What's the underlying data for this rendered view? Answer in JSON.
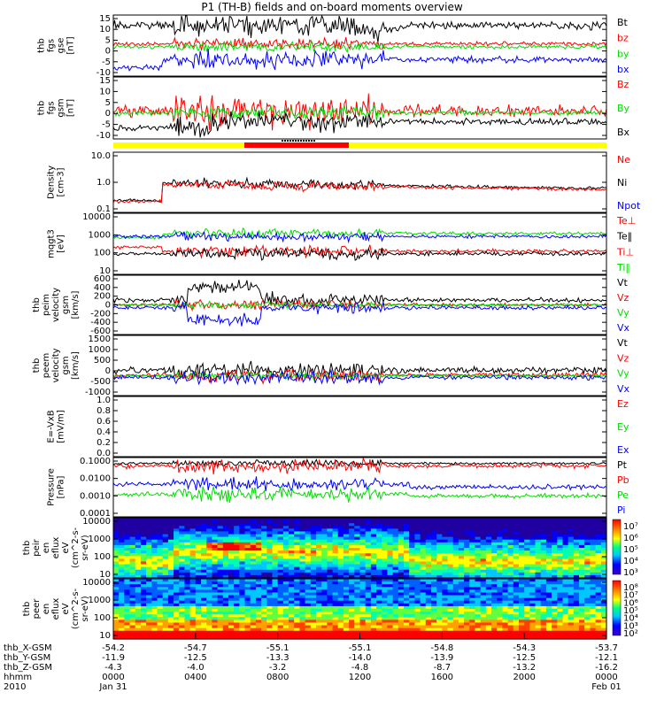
{
  "title": "P1 (TH-B) fields and on-board moments overview",
  "colors": {
    "black": "#000000",
    "red": "#ff0000",
    "green": "#00dd00",
    "blue": "#0000ff",
    "yellow": "#ffff00"
  },
  "chart_data": [
    {
      "type": "line",
      "ylabel": [
        "thb",
        "fgs",
        "gse",
        "[nT]"
      ],
      "ylim": [
        -15,
        15
      ],
      "yticks": [
        "15",
        "10",
        "5",
        "0",
        "-5",
        "-10"
      ],
      "legend": [
        "Bt",
        "bz",
        "by",
        "bx"
      ],
      "legend_colors": [
        "#000000",
        "#ff0000",
        "#00dd00",
        "#0000ff"
      ]
    },
    {
      "type": "line",
      "ylabel": [
        "thb",
        "fgs",
        "gsm",
        "[nT]"
      ],
      "ylim": [
        -15,
        15
      ],
      "yticks": [
        "15",
        "10",
        "5",
        "0",
        "-5",
        "-10"
      ],
      "legend": [
        "Bz",
        "By",
        "Bx"
      ],
      "legend_colors": [
        "#ff0000",
        "#00dd00",
        "#000000"
      ]
    },
    {
      "type": "line",
      "ylabel": [
        "Density",
        "[cm-3]"
      ],
      "scale": "log",
      "ylim": [
        0.05,
        10
      ],
      "yticks": [
        "10.0",
        "1.0",
        "0.1"
      ],
      "legend": [
        "Ne",
        "Ni",
        "Npot"
      ],
      "legend_colors": [
        "#ff0000",
        "#000000",
        "#0000ff"
      ]
    },
    {
      "type": "line",
      "ylabel": [
        "mqgt3",
        "[eV]"
      ],
      "scale": "log",
      "ylim": [
        10,
        10000
      ],
      "yticks": [
        "10000",
        "1000",
        "100",
        "10"
      ],
      "legend": [
        "Te⊥",
        "Te‖",
        "Ti⊥",
        "Ti‖"
      ],
      "legend_colors": [
        "#ff0000",
        "#000000",
        "#ff0000",
        "#00dd00"
      ]
    },
    {
      "type": "line",
      "ylabel": [
        "thb",
        "peim",
        "velocity",
        "gsm",
        "[km/s]"
      ],
      "ylim": [
        -600,
        600
      ],
      "yticks": [
        "600",
        "400",
        "200",
        "0",
        "-200",
        "-400",
        "-600"
      ],
      "legend": [
        "Vt",
        "Vz",
        "Vy",
        "Vx"
      ],
      "legend_colors": [
        "#000000",
        "#ff0000",
        "#00dd00",
        "#0000ff"
      ]
    },
    {
      "type": "line",
      "ylabel": [
        "thb",
        "peem",
        "velocity",
        "gsm",
        "[km/s]"
      ],
      "ylim": [
        -1000,
        1500
      ],
      "yticks": [
        "1500",
        "1000",
        "500",
        "0",
        "-500",
        "-1000"
      ],
      "legend": [
        "Vt",
        "Vz",
        "Vy",
        "Vx"
      ],
      "legend_colors": [
        "#000000",
        "#ff0000",
        "#00dd00",
        "#0000ff"
      ]
    },
    {
      "type": "line",
      "ylabel": [
        "E=-VxB",
        "[mV/m]"
      ],
      "ylim": [
        0,
        1
      ],
      "yticks": [
        "1.0",
        "0.8",
        "0.6",
        "0.4",
        "0.2",
        "0.0"
      ],
      "legend": [
        "Ez",
        "Ey",
        "Ex"
      ],
      "legend_colors": [
        "#ff0000",
        "#00dd00",
        "#0000ff"
      ]
    },
    {
      "type": "line",
      "ylabel": [
        "Pressure",
        "[nPa]"
      ],
      "scale": "log",
      "ylim": [
        0.0001,
        0.1
      ],
      "yticks": [
        "0.1000",
        "0.0100",
        "0.0010",
        "0.0001"
      ],
      "legend": [
        "Pt",
        "Pb",
        "Pe",
        "Pi"
      ],
      "legend_colors": [
        "#000000",
        "#ff0000",
        "#00dd00",
        "#0000ff"
      ]
    },
    {
      "type": "heatmap",
      "ylabel": [
        "thb",
        "peir",
        "en",
        "eflux",
        "eV",
        "(cm^2-s-",
        "sr-eV)"
      ],
      "scale": "log",
      "ylim": [
        5,
        20000
      ],
      "yticks": [
        "10000",
        "1000",
        "100",
        "10"
      ],
      "colorbar": [
        "10⁷",
        "10⁶",
        "10⁵",
        "10⁴",
        "10³"
      ]
    },
    {
      "type": "heatmap",
      "ylabel": [
        "thb",
        "peer",
        "en",
        "eflux",
        "eV",
        "(cm^2-s-",
        "sr-eV)"
      ],
      "scale": "log",
      "ylim": [
        5,
        20000
      ],
      "yticks": [
        "10000",
        "1000",
        "100",
        "10"
      ],
      "colorbar": [
        "10⁸",
        "10⁷",
        "10⁶",
        "10⁵",
        "10⁴",
        "10³",
        "10²"
      ]
    }
  ],
  "xaxis": {
    "row_labels": [
      "thb_X-GSM",
      "thb_Y-GSM",
      "thb_Z-GSM",
      "hhmm",
      "2010"
    ],
    "columns": [
      [
        "-54.2",
        "-11.9",
        "-4.3",
        "0000",
        "Jan 31"
      ],
      [
        "-54.7",
        "-12.5",
        "-4.0",
        "0400",
        ""
      ],
      [
        "-55.1",
        "-13.3",
        "-3.2",
        "0800",
        ""
      ],
      [
        "-55.1",
        "-14.0",
        "-4.8",
        "1200",
        ""
      ],
      [
        "-54.8",
        "-13.9",
        "-8.7",
        "1600",
        ""
      ],
      [
        "-54.3",
        "-12.5",
        "-13.2",
        "2000",
        ""
      ],
      [
        "-53.7",
        "-12.1",
        "-16.2",
        "0000",
        "Feb 01"
      ]
    ]
  }
}
